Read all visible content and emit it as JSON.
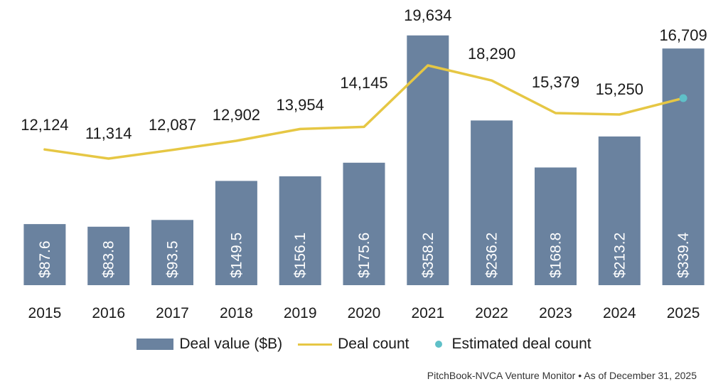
{
  "chart_data": {
    "type": "bar",
    "categories": [
      "2015",
      "2016",
      "2017",
      "2018",
      "2019",
      "2020",
      "2021",
      "2022",
      "2023",
      "2024",
      "2025"
    ],
    "series": [
      {
        "name": "Deal value ($B)",
        "kind": "bar",
        "values": [
          87.6,
          83.8,
          93.5,
          149.5,
          156.1,
          175.6,
          358.2,
          236.2,
          168.8,
          213.2,
          339.4
        ],
        "value_labels": [
          "$87.6",
          "$83.8",
          "$93.5",
          "$149.5",
          "$156.1",
          "$175.6",
          "$358.2",
          "$236.2",
          "$168.8",
          "$213.2",
          "$339.4"
        ]
      },
      {
        "name": "Deal count",
        "kind": "line",
        "values": [
          12124,
          11314,
          12087,
          12902,
          13954,
          14145,
          19634,
          18290,
          15379,
          15250,
          16709
        ],
        "value_labels": [
          "12,124",
          "11,314",
          "12,087",
          "12,902",
          "13,954",
          "14,145",
          "19,634",
          "18,290",
          "15,379",
          "15,250",
          "16,709"
        ]
      },
      {
        "name": "Estimated deal count",
        "kind": "point",
        "category": "2025",
        "value": 16709
      }
    ],
    "title": "",
    "xlabel": "",
    "ylabel": "",
    "ylim": [
      0,
      360
    ],
    "legend_position": "bottom-center",
    "grid": false,
    "colors": {
      "bar": "#6a829f",
      "line": "#e6c744",
      "estimate": "#5fc0c8"
    }
  },
  "legend": {
    "bar_label": "Deal value ($B)",
    "line_label": "Deal count",
    "estimate_label": "Estimated deal count"
  },
  "footer": {
    "source": "PitchBook-NVCA Venture Monitor • As of December 31, 2025"
  }
}
